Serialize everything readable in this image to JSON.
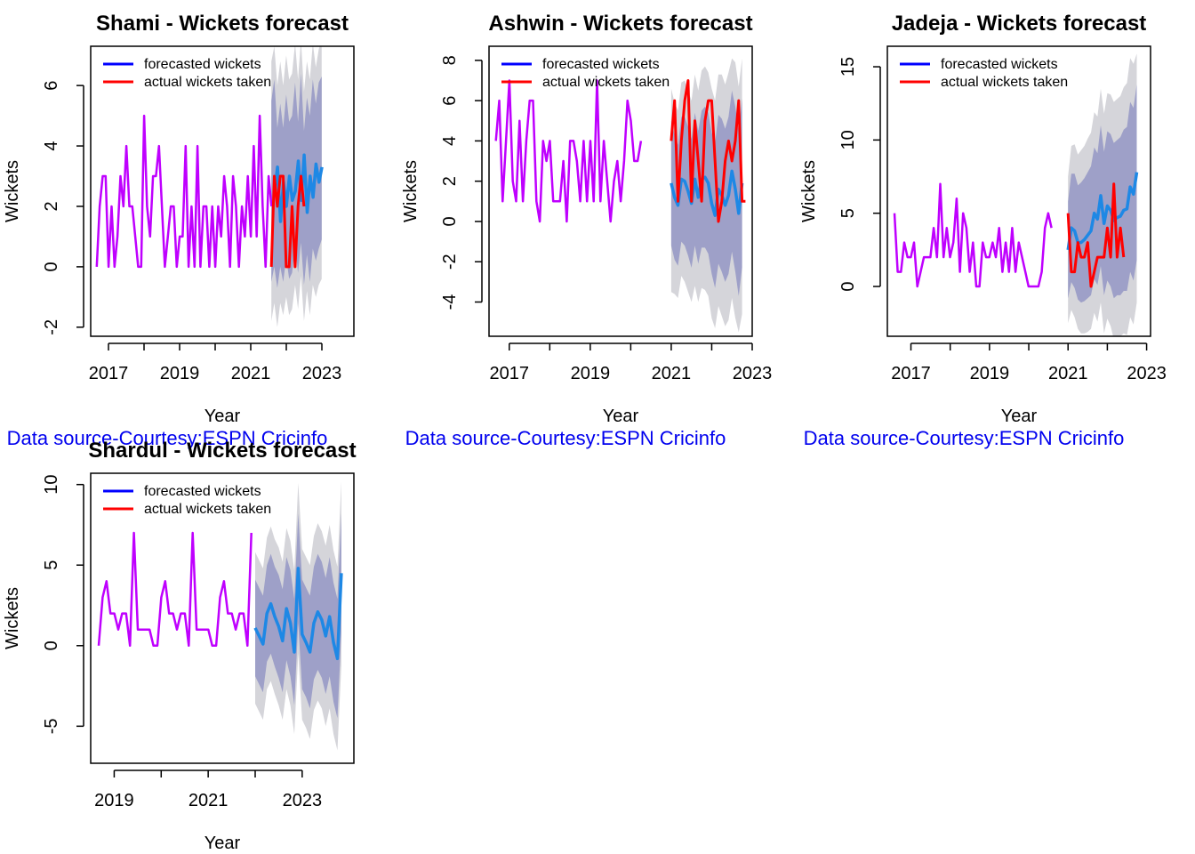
{
  "figure": {
    "source_note": "Data source-Courtesy:ESPN Cricinfo"
  },
  "colors": {
    "history": "#BF00FF",
    "forecast": "#1E88E5",
    "actual": "#FF0000",
    "legend_forecast": "#0000FF",
    "band80": "#9EA0C8",
    "band95": "#D5D5DA",
    "source": "#0000EE",
    "axis": "#000000"
  },
  "chart_data": [
    {
      "type": "line",
      "title": "Shami - Wickets forecast",
      "xlabel": "Year",
      "ylabel": "Wickets",
      "xlim": [
        2016.5,
        2023.9
      ],
      "ylim": [
        -2.3,
        7.3
      ],
      "xticks": [
        2017,
        2019,
        2021,
        2023
      ],
      "yticks": [
        -2,
        0,
        2,
        4,
        6
      ],
      "legend": {
        "position": "top-left",
        "entries": [
          "forecasted wickets",
          "actual wickets taken"
        ]
      },
      "series": [
        {
          "role": "history",
          "x_start": 2016.67,
          "step": 0.0833,
          "values": [
            0,
            2,
            3,
            3,
            0,
            2,
            0,
            1,
            3,
            2,
            4,
            2,
            2,
            1,
            0,
            0,
            5,
            2,
            1,
            3,
            3,
            4,
            2,
            0,
            1,
            2,
            2,
            0,
            1,
            1,
            4,
            0,
            2,
            0,
            4,
            0,
            2,
            2,
            0,
            2,
            0,
            2,
            1,
            3,
            2,
            0,
            3,
            2,
            0,
            2,
            1,
            3,
            1,
            4,
            1,
            5,
            2,
            0,
            3,
            2
          ]
        },
        {
          "role": "forecast",
          "x_start": 2021.67,
          "step": 0.0833,
          "values": [
            2.5,
            3.3,
            1.5,
            2.8,
            2.0,
            3.0,
            2.2,
            2.5,
            3.5,
            2.2,
            3.7,
            1.8,
            3.0,
            2.3,
            3.4,
            2.8,
            3.3
          ]
        },
        {
          "role": "band80",
          "x_start": 2021.58,
          "step": 0.0833,
          "lower": [
            -0.5,
            0,
            -0.7,
            0,
            -0.5,
            0.3,
            -0.4,
            -0.2,
            0.7,
            -0.2,
            0.8,
            -0.6,
            0.4,
            -0.5,
            0.6,
            0.2,
            0.6,
            0.9
          ],
          "upper": [
            5.5,
            6.2,
            4.6,
            5.4,
            4.6,
            5.7,
            4.8,
            5.0,
            6.1,
            4.8,
            6.4,
            4.5,
            5.6,
            5.0,
            6.2,
            5.4,
            6.1,
            6.3
          ]
        },
        {
          "role": "band95",
          "x_start": 2021.58,
          "step": 0.0833,
          "lower": [
            -1.8,
            -1.2,
            -2.0,
            -1.2,
            -1.6,
            -1.0,
            -1.6,
            -1.4,
            -0.6,
            -1.4,
            -0.3,
            -1.8,
            -0.8,
            -1.6,
            -0.6,
            -1.0,
            -0.6,
            -0.4
          ],
          "upper": [
            6.8,
            7.3,
            6.0,
            6.8,
            6.0,
            7.0,
            6.2,
            6.4,
            7.4,
            6.2,
            7.5,
            5.8,
            6.8,
            6.2,
            7.4,
            6.6,
            7.2,
            7.5
          ]
        },
        {
          "role": "actual",
          "x_start": 2021.58,
          "step": 0.0833,
          "values": [
            0,
            3,
            2,
            3,
            3,
            0,
            0,
            2,
            0,
            2,
            3,
            2
          ]
        }
      ]
    },
    {
      "type": "line",
      "title": "Ashwin - Wickets forecast",
      "xlabel": "Year",
      "ylabel": "Wickets",
      "xlim": [
        2016.5,
        2023.0
      ],
      "ylim": [
        -5.7,
        8.7
      ],
      "xticks": [
        2017,
        2019,
        2021,
        2023
      ],
      "yticks": [
        -4,
        -2,
        0,
        2,
        4,
        6,
        8
      ],
      "legend": {
        "position": "top-left",
        "entries": [
          "forecasted wickets",
          "actual wickets taken"
        ]
      },
      "series": [
        {
          "role": "history",
          "x_start": 2016.67,
          "step": 0.0833,
          "values": [
            4,
            6,
            1,
            4,
            7,
            2,
            1,
            5,
            1,
            4,
            6,
            6,
            1,
            0,
            4,
            3,
            4,
            1,
            1,
            1,
            3,
            0,
            4,
            4,
            3,
            1,
            4,
            1,
            4,
            1,
            7,
            1,
            4,
            2,
            0,
            2,
            3,
            1,
            3,
            6,
            5,
            3,
            3,
            4
          ]
        },
        {
          "role": "forecast",
          "x_start": 2021.0,
          "step": 0.0833,
          "values": [
            1.9,
            1.2,
            0.8,
            2.1,
            2.0,
            1.5,
            0.9,
            2.1,
            1.2,
            2.1,
            2.2,
            1.9,
            0.9,
            0.3,
            1.6,
            1.3,
            0.8,
            1.3,
            2.5,
            1.6,
            0.4,
            1.9
          ]
        },
        {
          "role": "band80",
          "x_start": 2021.0,
          "step": 0.0833,
          "lower": [
            -1.2,
            -1.9,
            -2.2,
            -1.0,
            -1.2,
            -1.7,
            -2.3,
            -1.2,
            -2.1,
            -1.3,
            -1.3,
            -1.6,
            -2.6,
            -3.3,
            -2.1,
            -2.5,
            -3.0,
            -2.6,
            -1.5,
            -2.5,
            -3.7,
            -2.3
          ],
          "upper": [
            5.0,
            4.3,
            3.8,
            5.2,
            5.2,
            4.7,
            4.1,
            5.4,
            4.5,
            5.5,
            5.7,
            5.4,
            4.4,
            3.9,
            5.3,
            5.1,
            4.6,
            5.2,
            6.5,
            5.7,
            4.5,
            6.1
          ]
        },
        {
          "role": "band95",
          "x_start": 2021.0,
          "step": 0.0833,
          "lower": [
            -3.5,
            -3.6,
            -3.8,
            -2.7,
            -3.0,
            -3.5,
            -4.0,
            -3.2,
            -4.0,
            -3.3,
            -3.4,
            -3.7,
            -4.8,
            -5.3,
            -4.2,
            -4.7,
            -5.2,
            -4.9,
            -3.8,
            -4.8,
            -5.5,
            -4.6
          ],
          "upper": [
            6.6,
            5.9,
            5.5,
            6.9,
            7.0,
            6.5,
            6.0,
            7.3,
            6.5,
            7.5,
            7.7,
            7.4,
            6.6,
            6.0,
            7.3,
            7.3,
            6.8,
            7.4,
            8.1,
            7.9,
            6.7,
            8.1
          ]
        },
        {
          "role": "actual",
          "x_start": 2021.0,
          "step": 0.0833,
          "values": [
            4,
            6,
            1,
            4,
            6,
            7,
            1,
            5,
            3,
            1,
            5,
            6,
            6,
            3,
            0,
            1,
            3,
            4,
            3,
            4,
            6,
            1,
            1
          ]
        }
      ]
    },
    {
      "type": "line",
      "title": "Jadeja - Wickets forecast",
      "xlabel": "Year",
      "ylabel": "Wickets",
      "xlim": [
        2016.4,
        2023.1
      ],
      "ylim": [
        -3.4,
        16.4
      ],
      "xticks": [
        2017,
        2019,
        2021,
        2023
      ],
      "yticks": [
        0,
        5,
        10,
        15
      ],
      "legend": {
        "position": "top-left",
        "entries": [
          "forecasted wickets",
          "actual wickets taken"
        ]
      },
      "series": [
        {
          "role": "history",
          "x_start": 2016.58,
          "step": 0.0833,
          "values": [
            5,
            1,
            1,
            3,
            2,
            2,
            3,
            0,
            1,
            2,
            2,
            2,
            4,
            2,
            7,
            2,
            4,
            2,
            3,
            6,
            1,
            5,
            4,
            1,
            3,
            0,
            0,
            3,
            2,
            2,
            3,
            2,
            4,
            1,
            3,
            1,
            4,
            1,
            3,
            2,
            1,
            0,
            0,
            0,
            0,
            1,
            4,
            5,
            4
          ]
        },
        {
          "role": "forecast",
          "x_start": 2021.0,
          "step": 0.0833,
          "values": [
            2.5,
            4.0,
            3.8,
            3.0,
            3.0,
            3.2,
            3.5,
            3.8,
            5.0,
            4.6,
            6.2,
            4.3,
            5.5,
            5.2,
            4.5,
            4.7,
            4.8,
            5.2,
            5.3,
            6.8,
            6.3,
            7.8
          ]
        },
        {
          "role": "band80",
          "x_start": 2021.0,
          "step": 0.0833,
          "lower": [
            -0.8,
            0.3,
            -0.1,
            -0.9,
            -1.1,
            -1.0,
            -0.8,
            -0.6,
            0.5,
            0.1,
            1.4,
            -0.6,
            0.4,
            0.0,
            -0.8,
            -0.6,
            -0.6,
            -0.3,
            -0.3,
            1.0,
            0.4,
            1.8
          ],
          "upper": [
            5.8,
            7.7,
            7.7,
            6.9,
            7.1,
            7.4,
            7.8,
            8.2,
            9.5,
            9.1,
            11.0,
            9.2,
            10.6,
            10.4,
            9.8,
            10.0,
            10.2,
            10.7,
            10.9,
            12.6,
            12.2,
            13.8
          ]
        },
        {
          "role": "band95",
          "x_start": 2021.0,
          "step": 0.0833,
          "lower": [
            -2.5,
            -1.6,
            -2.1,
            -2.9,
            -3.2,
            -3.2,
            -3.1,
            -2.9,
            -1.8,
            -2.4,
            -1.1,
            -3.2,
            -2.2,
            -2.7,
            -3.6,
            -3.4,
            -3.4,
            -3.2,
            -3.3,
            -2.1,
            -2.6,
            -1.1
          ],
          "upper": [
            7.5,
            9.6,
            9.7,
            9.0,
            9.3,
            9.6,
            10.1,
            10.5,
            11.9,
            11.6,
            13.5,
            11.8,
            13.2,
            13.1,
            12.6,
            12.8,
            13.0,
            13.6,
            13.9,
            15.6,
            15.2,
            15.9
          ]
        },
        {
          "role": "actual",
          "x_start": 2021.0,
          "step": 0.0833,
          "values": [
            5,
            1,
            1,
            3,
            2,
            2,
            3,
            0,
            1,
            2,
            2,
            2,
            4,
            2,
            7,
            2,
            4,
            2
          ]
        }
      ]
    },
    {
      "type": "line",
      "title": "Shardul - Wickets forecast",
      "xlabel": "Year",
      "ylabel": "Wickets",
      "xlim": [
        2018.5,
        2024.1
      ],
      "ylim": [
        -7.3,
        10.7
      ],
      "xticks": [
        2019,
        2021,
        2023
      ],
      "yticks": [
        -5,
        0,
        5,
        10
      ],
      "legend": {
        "position": "top-left",
        "entries": [
          "forecasted wickets",
          "actual wickets taken"
        ]
      },
      "series": [
        {
          "role": "history",
          "x_start": 2018.67,
          "step": 0.0833,
          "values": [
            0,
            3,
            4,
            2,
            2,
            1,
            2,
            2,
            0,
            7,
            1,
            1,
            1,
            1,
            0,
            0,
            3,
            4,
            2,
            2,
            1,
            2,
            2,
            0,
            7,
            1,
            1,
            1,
            1,
            0,
            0,
            3,
            4,
            2,
            2,
            1,
            2,
            2,
            0,
            7
          ]
        },
        {
          "role": "forecast",
          "x_start": 2022.0,
          "step": 0.0833,
          "values": [
            1.1,
            0.6,
            0.1,
            2.0,
            2.6,
            1.8,
            1.2,
            0.3,
            2.3,
            1.4,
            -0.4,
            4.8,
            0.7,
            0.2,
            -0.4,
            1.4,
            2.1,
            1.6,
            0.6,
            1.8,
            0.2,
            -0.8,
            4.5
          ]
        },
        {
          "role": "band80",
          "x_start": 2022.0,
          "step": 0.0833,
          "lower": [
            -1.9,
            -2.4,
            -2.9,
            -1.0,
            -0.5,
            -1.3,
            -2.0,
            -2.9,
            -0.9,
            -1.9,
            -3.7,
            1.4,
            -2.7,
            -3.2,
            -3.9,
            -2.1,
            -1.5,
            -2.0,
            -3.0,
            -1.9,
            -3.5,
            -4.5,
            0.8
          ],
          "upper": [
            4.1,
            3.6,
            3.1,
            5.0,
            5.7,
            4.9,
            4.4,
            3.5,
            5.5,
            4.7,
            2.9,
            8.2,
            4.1,
            3.6,
            3.1,
            4.9,
            5.7,
            5.2,
            4.2,
            5.5,
            3.9,
            2.9,
            8.2
          ]
        },
        {
          "role": "band95",
          "x_start": 2022.0,
          "step": 0.0833,
          "lower": [
            -3.6,
            -4.1,
            -4.6,
            -2.7,
            -2.2,
            -3.0,
            -3.7,
            -4.6,
            -2.7,
            -3.7,
            -5.5,
            -0.5,
            -4.6,
            -5.1,
            -5.8,
            -4.0,
            -3.4,
            -3.9,
            -5.0,
            -3.9,
            -5.5,
            -6.5,
            -1.2
          ],
          "upper": [
            5.8,
            5.3,
            4.8,
            6.7,
            7.4,
            6.6,
            6.1,
            5.2,
            7.3,
            6.5,
            4.7,
            10.1,
            6.0,
            5.5,
            5.0,
            6.8,
            7.6,
            7.1,
            6.2,
            7.5,
            5.9,
            4.9,
            10.2
          ]
        }
      ]
    }
  ]
}
